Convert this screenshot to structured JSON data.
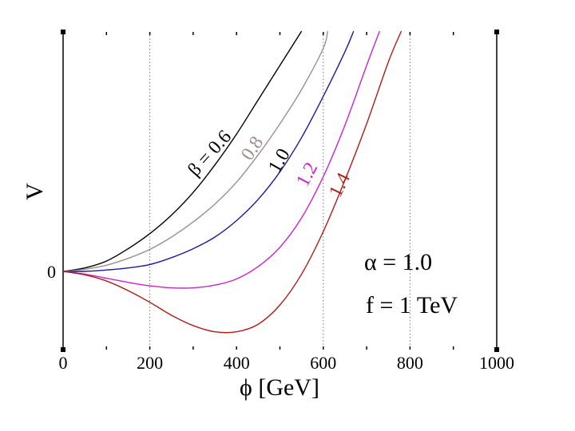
{
  "chart_data": {
    "type": "line",
    "xlabel": "ϕ [GeV]",
    "ylabel": "V",
    "xlim": [
      0,
      1000
    ],
    "ylim": [
      -1.1,
      3.5
    ],
    "xticks": [
      "0",
      "200",
      "400",
      "600",
      "800",
      "1000"
    ],
    "yticks": [
      "0"
    ],
    "grid_x": [
      200,
      600,
      800
    ],
    "series": [
      {
        "name": "β = 0.6",
        "label": "β = 0.6",
        "beta": 0.6,
        "color": "#000000",
        "x": [
          0,
          50,
          100,
          150,
          200,
          250,
          300,
          350,
          400,
          450,
          500,
          550
        ],
        "y": [
          0,
          0.05,
          0.15,
          0.33,
          0.55,
          0.82,
          1.15,
          1.55,
          2.0,
          2.5,
          3.0,
          3.5
        ]
      },
      {
        "name": "0.8",
        "label": "0.8",
        "beta": 0.8,
        "color": "#a08c8c",
        "x": [
          0,
          50,
          100,
          150,
          200,
          250,
          300,
          350,
          400,
          450,
          500,
          550,
          600,
          610
        ],
        "y": [
          0,
          0.03,
          0.09,
          0.19,
          0.32,
          0.5,
          0.72,
          0.98,
          1.3,
          1.7,
          2.15,
          2.65,
          3.25,
          3.5
        ]
      },
      {
        "name": "1.0",
        "label": "1.0",
        "beta": 1.0,
        "color": "#1a1aa0",
        "x": [
          0,
          50,
          100,
          150,
          200,
          250,
          300,
          350,
          400,
          450,
          500,
          550,
          600,
          650,
          670
        ],
        "y": [
          0,
          0.0,
          0.02,
          0.05,
          0.1,
          0.2,
          0.33,
          0.5,
          0.74,
          1.05,
          1.45,
          1.95,
          2.55,
          3.2,
          3.5
        ]
      },
      {
        "name": "1.2",
        "label": "1.2",
        "beta": 1.2,
        "color": "#cc22cc",
        "x": [
          0,
          50,
          100,
          150,
          200,
          250,
          300,
          350,
          400,
          450,
          500,
          550,
          600,
          650,
          700,
          730
        ],
        "y": [
          0,
          -0.04,
          -0.1,
          -0.16,
          -0.21,
          -0.24,
          -0.24,
          -0.2,
          -0.11,
          0.07,
          0.35,
          0.78,
          1.38,
          2.13,
          3.0,
          3.5
        ]
      },
      {
        "name": "1.4",
        "label": "1.4",
        "beta": 1.4,
        "color": "#b01c14",
        "x": [
          0,
          50,
          100,
          150,
          200,
          250,
          300,
          350,
          400,
          450,
          500,
          550,
          600,
          650,
          700,
          750,
          780
        ],
        "y": [
          0,
          -0.05,
          -0.14,
          -0.28,
          -0.45,
          -0.64,
          -0.79,
          -0.88,
          -0.88,
          -0.77,
          -0.49,
          -0.04,
          0.58,
          1.33,
          2.15,
          3.05,
          3.5
        ]
      }
    ],
    "annotations": [
      "α = 1.0",
      "f = 1 TeV"
    ]
  }
}
